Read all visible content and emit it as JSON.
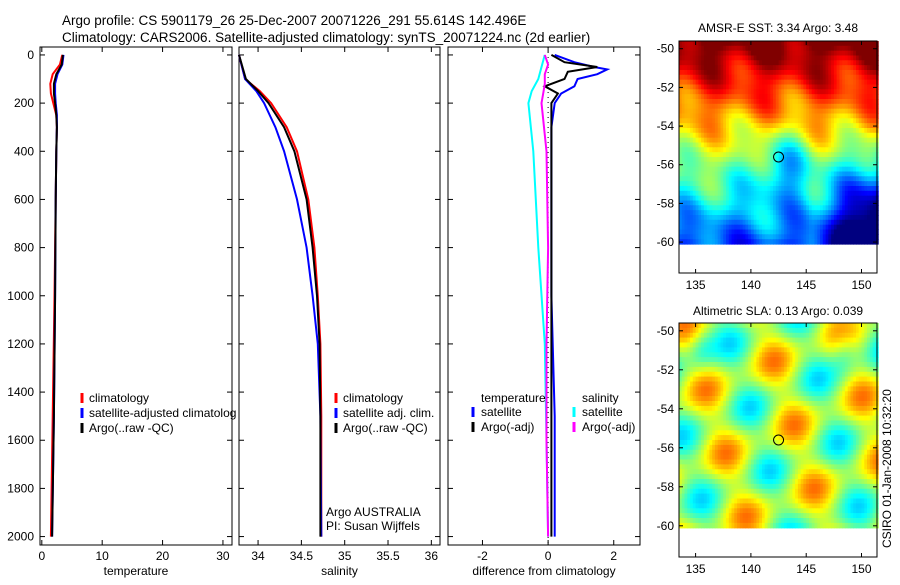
{
  "title": {
    "line1": "Argo profile: CS 5901179_26 25-Dec-2007 20071226_291 55.614S 142.496E",
    "line2": "Climatology: CARS2006. Satellite-adjusted climatology: synTS_20071224.nc (2d earlier)"
  },
  "side_label": "CSIRO 01-Jan-2008 10:32:20",
  "chart_data": [
    {
      "type": "line",
      "id": "temperature",
      "xlabel": "temperature",
      "ylabel": "",
      "xlim": [
        -0.3,
        31.5
      ],
      "ylim": [
        2035,
        -33
      ],
      "xticks": [
        0,
        10,
        20,
        30
      ],
      "yticks": [
        0,
        200,
        400,
        600,
        800,
        1000,
        1200,
        1400,
        1600,
        1800,
        2000
      ],
      "legend": [
        "climatology",
        "satellite-adjusted climatolog",
        "Argo(..raw -QC)"
      ],
      "series": [
        {
          "name": "climatology",
          "color": "#ff0000",
          "depth": [
            0,
            40,
            80,
            120,
            160,
            200,
            250,
            300,
            400,
            600,
            1000,
            1500,
            2000
          ],
          "values": [
            3.4,
            3.0,
            1.8,
            1.4,
            1.5,
            1.9,
            2.4,
            2.5,
            2.4,
            2.3,
            2.1,
            1.8,
            1.5
          ]
        },
        {
          "name": "satellite-adjusted climatolog",
          "color": "#0000ff",
          "depth": [
            0,
            40,
            80,
            120,
            160,
            200,
            250,
            300,
            400,
            600,
            1000,
            1500,
            2000
          ],
          "values": [
            3.6,
            3.4,
            2.6,
            2.2,
            2.2,
            2.3,
            2.5,
            2.5,
            2.4,
            2.3,
            2.2,
            2.0,
            1.7
          ]
        },
        {
          "name": "Argo(..raw -QC)",
          "color": "#000000",
          "depth": [
            0,
            40,
            80,
            120,
            160,
            200,
            250,
            300,
            400,
            600,
            1000,
            1500,
            2000
          ],
          "values": [
            3.5,
            3.3,
            2.4,
            2.0,
            2.0,
            2.2,
            2.4,
            2.5,
            2.4,
            2.3,
            2.2,
            2.0,
            1.7
          ]
        }
      ]
    },
    {
      "type": "line",
      "id": "salinity",
      "xlabel": "salinity",
      "xlim": [
        33.78,
        36.1
      ],
      "ylim": [
        2035,
        -33
      ],
      "xticks": [
        34,
        34.5,
        35,
        35.5,
        36
      ],
      "legend": [
        "climatology",
        "satellite adj. clim.",
        "Argo(..raw -QC)"
      ],
      "annotation": [
        "Argo AUSTRALIA",
        "PI: Susan Wijffels"
      ],
      "series": [
        {
          "name": "climatology",
          "color": "#ff0000",
          "depth": [
            0,
            100,
            150,
            200,
            300,
            400,
            600,
            800,
            1000,
            1200,
            1500,
            2000
          ],
          "values": [
            33.78,
            33.85,
            34.02,
            34.15,
            34.33,
            34.45,
            34.58,
            34.65,
            34.69,
            34.72,
            34.73,
            34.73
          ]
        },
        {
          "name": "satellite adj. clim.",
          "color": "#0000ff",
          "depth": [
            0,
            100,
            150,
            200,
            300,
            400,
            600,
            800,
            1000,
            1200,
            1500,
            2000
          ],
          "values": [
            33.78,
            33.85,
            33.98,
            34.07,
            34.2,
            34.3,
            34.45,
            34.56,
            34.63,
            34.69,
            34.72,
            34.73
          ]
        },
        {
          "name": "Argo(..raw -QC)",
          "color": "#000000",
          "depth": [
            0,
            100,
            150,
            200,
            300,
            400,
            600,
            800,
            1000,
            1200,
            1500,
            2000
          ],
          "values": [
            33.78,
            33.86,
            34.0,
            34.12,
            34.3,
            34.42,
            34.56,
            34.63,
            34.68,
            34.71,
            34.72,
            34.72
          ]
        }
      ]
    },
    {
      "type": "line",
      "id": "difference",
      "xlabel": "difference from climatology",
      "xlim": [
        -3.05,
        2.8
      ],
      "ylim": [
        2035,
        -33
      ],
      "xticks": [
        -2,
        0,
        2
      ],
      "legend_groups": [
        {
          "title": "temperature",
          "items": [
            "satellite",
            "Argo(-adj)"
          ]
        },
        {
          "title": "salinity",
          "items": [
            "satellite",
            "Argo(-adj)"
          ]
        }
      ],
      "series": [
        {
          "name": "temperature satellite",
          "color": "#0000ff",
          "depth": [
            0,
            30,
            50,
            60,
            80,
            100,
            130,
            160,
            200,
            300,
            600,
            1000,
            1500,
            2000
          ],
          "values": [
            0.2,
            0.8,
            1.4,
            1.8,
            1.5,
            0.9,
            0.8,
            0.4,
            0.2,
            0.1,
            0.1,
            0.1,
            0.2,
            0.2
          ]
        },
        {
          "name": "temperature Argo(-adj)",
          "color": "#000000",
          "depth": [
            0,
            30,
            50,
            70,
            100,
            130,
            160,
            200,
            300,
            600,
            1000,
            1500,
            2000
          ],
          "values": [
            0.1,
            0.5,
            1.5,
            0.6,
            0.5,
            -0.1,
            0.3,
            0.1,
            0.1,
            0.1,
            0.1,
            0.1,
            0.1
          ]
        },
        {
          "name": "salinity satellite",
          "color": "#00ffff",
          "depth": [
            0,
            50,
            100,
            150,
            200,
            400,
            800,
            1200,
            1600,
            2000
          ],
          "values": [
            -0.1,
            -0.2,
            -0.3,
            -0.5,
            -0.6,
            -0.45,
            -0.3,
            -0.1,
            -0.05,
            0.0
          ]
        },
        {
          "name": "salinity Argo(-adj)",
          "color": "#ff00ff",
          "depth": [
            0,
            40,
            80,
            120,
            160,
            200,
            400,
            800,
            1200,
            1600,
            2000
          ],
          "values": [
            -0.1,
            0.0,
            -0.1,
            -0.1,
            -0.15,
            -0.2,
            -0.05,
            0.0,
            -0.05,
            -0.05,
            0.0
          ]
        }
      ]
    },
    {
      "type": "heatmap",
      "id": "sst-map",
      "title": "AMSR-E SST: 3.34 Argo: 3.48",
      "xlim": [
        133.5,
        151.4
      ],
      "ylim": [
        -49.6,
        -61.6
      ],
      "xticks": [
        135,
        140,
        145,
        150
      ],
      "yticks": [
        -50,
        -52,
        -54,
        -56,
        -58,
        -60
      ],
      "marker": {
        "lon": 142.5,
        "lat": -55.6
      }
    },
    {
      "type": "heatmap",
      "id": "sla-map",
      "title": "Altimetric SLA: 0.13 Argo: 0.039",
      "xlim": [
        133.5,
        151.4
      ],
      "ylim": [
        -49.6,
        -61.6
      ],
      "xticks": [
        135,
        140,
        145,
        150
      ],
      "yticks": [
        -50,
        -52,
        -54,
        -56,
        -58,
        -60
      ],
      "marker": {
        "lon": 142.5,
        "lat": -55.6
      }
    }
  ]
}
